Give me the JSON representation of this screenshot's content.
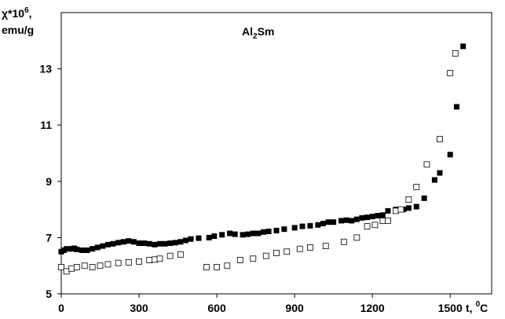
{
  "chart_data": {
    "type": "scatter",
    "title": {
      "main": "Al",
      "sub": "2",
      "rest": "Sm"
    },
    "ylabel": {
      "main": "χ*10",
      "sup": "6",
      "rest": ",",
      "unit": "emu/g"
    },
    "xlabel": {
      "main": "t,",
      "sup": "0",
      "unit": "C"
    },
    "xlim": [
      0,
      1660
    ],
    "xticks": [
      0,
      300,
      600,
      900,
      1200,
      1500
    ],
    "ylim": [
      5,
      15
    ],
    "yticks": [
      5,
      7,
      9,
      11,
      13
    ],
    "grid": false,
    "series": [
      {
        "marker": "filled",
        "color": "#000000",
        "x": [
          0,
          10,
          20,
          40,
          50,
          60,
          80,
          100,
          120,
          140,
          160,
          180,
          200,
          220,
          240,
          260,
          280,
          300,
          320,
          340,
          360,
          380,
          400,
          420,
          440,
          460,
          480,
          500,
          530,
          570,
          590,
          620,
          650,
          670,
          700,
          720,
          740,
          760,
          780,
          800,
          830,
          860,
          900,
          930,
          960,
          990,
          1010,
          1030,
          1050,
          1080,
          1100,
          1120,
          1140,
          1160,
          1180,
          1200,
          1220,
          1240,
          1260,
          1290,
          1320,
          1340,
          1370,
          1400,
          1440,
          1460,
          1500,
          1525,
          1550
        ],
        "values": [
          6.5,
          6.55,
          6.6,
          6.6,
          6.62,
          6.58,
          6.55,
          6.55,
          6.6,
          6.65,
          6.7,
          6.75,
          6.78,
          6.82,
          6.85,
          6.88,
          6.85,
          6.8,
          6.8,
          6.78,
          6.75,
          6.78,
          6.78,
          6.8,
          6.82,
          6.85,
          6.9,
          6.95,
          6.98,
          7.0,
          7.05,
          7.1,
          7.15,
          7.12,
          7.1,
          7.12,
          7.15,
          7.15,
          7.2,
          7.22,
          7.25,
          7.3,
          7.35,
          7.4,
          7.42,
          7.45,
          7.5,
          7.55,
          7.55,
          7.6,
          7.62,
          7.6,
          7.65,
          7.7,
          7.72,
          7.75,
          7.78,
          7.8,
          7.95,
          8.0,
          8.0,
          8.05,
          8.1,
          8.4,
          9.05,
          9.3,
          9.95,
          11.65,
          13.8
        ]
      },
      {
        "marker": "open",
        "color": "#000000",
        "x": [
          0,
          20,
          40,
          60,
          90,
          120,
          150,
          180,
          220,
          260,
          300,
          340,
          360,
          380,
          420,
          460,
          560,
          600,
          640,
          690,
          740,
          790,
          830,
          870,
          920,
          960,
          1020,
          1090,
          1140,
          1180,
          1210,
          1240,
          1260,
          1290,
          1310,
          1340,
          1370,
          1410,
          1460,
          1500,
          1520
        ],
        "values": [
          5.95,
          5.8,
          5.9,
          5.95,
          6.0,
          5.95,
          6.0,
          6.05,
          6.1,
          6.12,
          6.15,
          6.2,
          6.22,
          6.25,
          6.35,
          6.4,
          5.95,
          5.95,
          6.0,
          6.2,
          6.25,
          6.35,
          6.45,
          6.5,
          6.6,
          6.65,
          6.7,
          6.85,
          7.0,
          7.4,
          7.45,
          7.6,
          7.6,
          7.95,
          8.0,
          8.35,
          8.8,
          9.6,
          10.5,
          12.85,
          13.55
        ]
      }
    ]
  }
}
